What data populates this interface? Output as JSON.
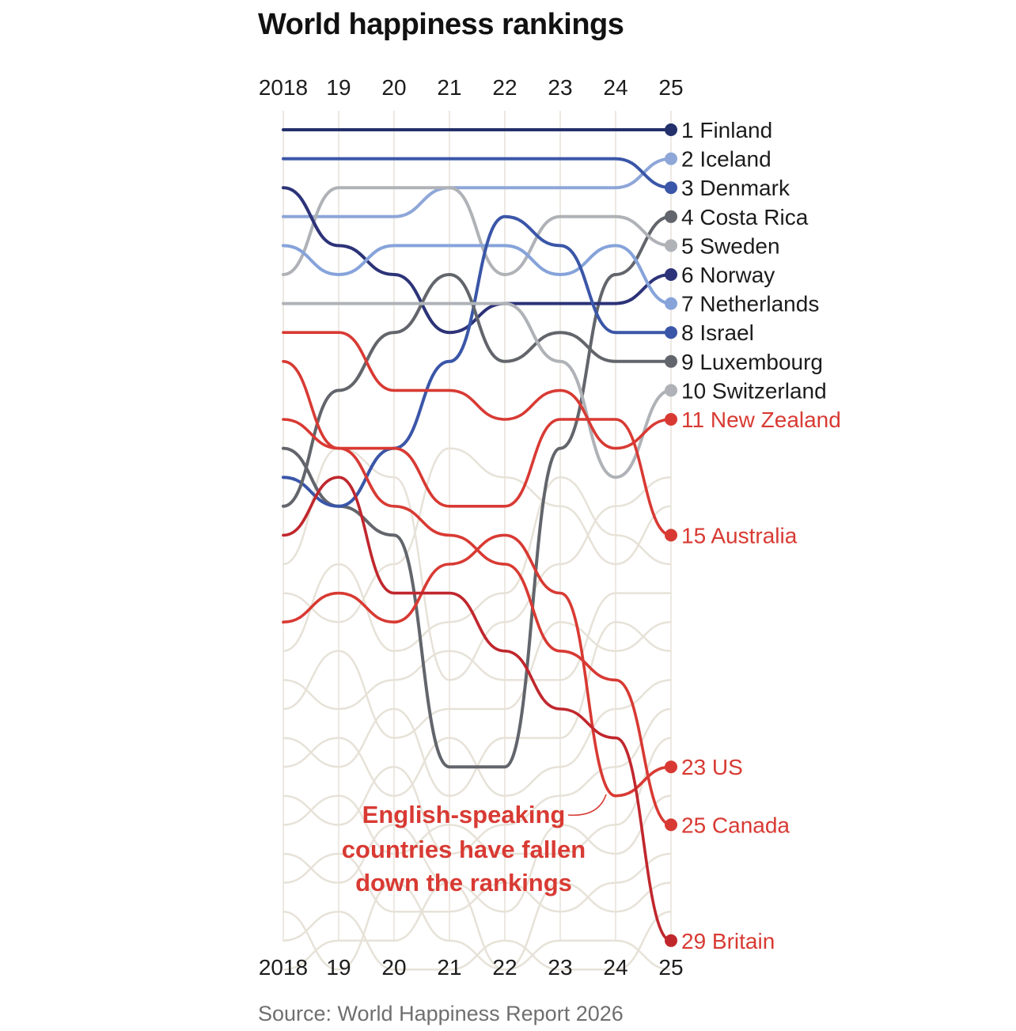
{
  "chart_data": {
    "type": "bump",
    "title": "World happiness rankings",
    "source": "Source: World Happiness Report 2026",
    "x": [
      2018,
      2019,
      2020,
      2021,
      2022,
      2023,
      2024,
      2025
    ],
    "x_tick_labels": [
      "2018",
      "19",
      "20",
      "21",
      "22",
      "23",
      "24",
      "25"
    ],
    "y_axis": "rank",
    "y_reversed": true,
    "ylim": [
      1,
      29
    ],
    "grid": "vertical lines at each year",
    "series": [
      {
        "name": "Finland",
        "end_label": "1 Finland",
        "group": "top",
        "color": "#23306b",
        "values": [
          1,
          1,
          1,
          1,
          1,
          1,
          1,
          1
        ]
      },
      {
        "name": "Iceland",
        "end_label": "2 Iceland",
        "group": "top",
        "color": "#8ea6d8",
        "values": [
          4,
          4,
          4,
          3,
          3,
          3,
          3,
          2
        ]
      },
      {
        "name": "Denmark",
        "end_label": "3 Denmark",
        "group": "top",
        "color": "#3a56a8",
        "values": [
          2,
          2,
          2,
          2,
          2,
          2,
          2,
          3
        ]
      },
      {
        "name": "Costa Rica",
        "end_label": "4 Costa Rica",
        "group": "top",
        "color": "#62656b",
        "values": [
          12,
          14,
          15,
          23,
          23,
          12,
          6,
          4
        ]
      },
      {
        "name": "Sweden",
        "end_label": "5 Sweden",
        "group": "top",
        "color": "#afb2b6",
        "values": [
          6,
          3,
          3,
          3,
          6,
          4,
          4,
          5
        ]
      },
      {
        "name": "Norway",
        "end_label": "6 Norway",
        "group": "top",
        "color": "#2c3378",
        "values": [
          3,
          5,
          6,
          8,
          7,
          7,
          7,
          6
        ]
      },
      {
        "name": "Netherlands",
        "end_label": "7 Netherlands",
        "group": "top",
        "color": "#86a3da",
        "values": [
          5,
          6,
          5,
          5,
          5,
          6,
          5,
          7
        ]
      },
      {
        "name": "Israel",
        "end_label": "8 Israel",
        "group": "top",
        "color": "#3a56a8",
        "values": [
          13,
          14,
          12,
          9,
          4,
          5,
          8,
          8
        ]
      },
      {
        "name": "Luxembourg",
        "end_label": "9 Luxembourg",
        "group": "top",
        "color": "#62656b",
        "values": [
          14,
          10,
          8,
          6,
          9,
          8,
          9,
          9
        ]
      },
      {
        "name": "Switzerland",
        "end_label": "10 Switzerland",
        "group": "top",
        "color": "#afb2b6",
        "values": [
          7,
          7,
          7,
          7,
          7,
          9,
          13,
          10
        ]
      },
      {
        "name": "New Zealand",
        "end_label": "11 New Zealand",
        "group": "english",
        "color": "#d83a33",
        "values": [
          8,
          8,
          10,
          10,
          11,
          10,
          12,
          11
        ]
      },
      {
        "name": "Australia",
        "end_label": "15 Australia",
        "group": "english",
        "color": "#d83a33",
        "values": [
          11,
          12,
          12,
          14,
          14,
          11,
          11,
          15
        ]
      },
      {
        "name": "US",
        "end_label": "23 US",
        "group": "english",
        "color": "#d83a33",
        "values": [
          18,
          17,
          18,
          16,
          15,
          17,
          24,
          23
        ]
      },
      {
        "name": "Canada",
        "end_label": "25 Canada",
        "group": "english",
        "color": "#d83a33",
        "values": [
          9,
          12,
          14,
          15,
          16,
          19,
          20,
          25
        ]
      },
      {
        "name": "Britain",
        "end_label": "29 Britain",
        "group": "english",
        "color": "#c0272d",
        "values": [
          15,
          13,
          17,
          17,
          19,
          21,
          22,
          29
        ]
      }
    ],
    "annotation": {
      "lines": [
        "English-speaking",
        "countries have fallen",
        "down the rankings"
      ],
      "color": "#d83a33"
    },
    "background_color": "#e7e2d8"
  }
}
